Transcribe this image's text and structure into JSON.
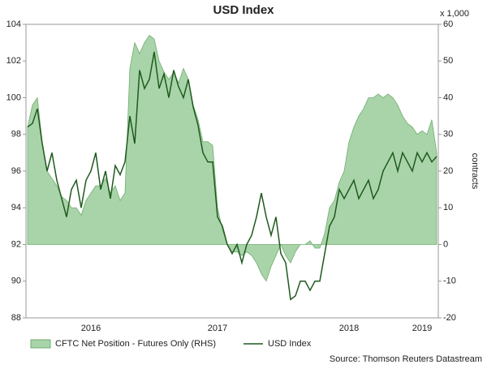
{
  "chart_data": {
    "type": "line",
    "title": "USD Index",
    "y2label": "contracts",
    "y2unit": "x 1,000",
    "source": "Source: Thomson Reuters Datastream",
    "categories": [
      null,
      null,
      null,
      null,
      null,
      null,
      null,
      null,
      null,
      null,
      null,
      null,
      null,
      "2016",
      null,
      null,
      null,
      null,
      null,
      null,
      null,
      null,
      null,
      null,
      null,
      null,
      null,
      null,
      null,
      null,
      null,
      null,
      null,
      null,
      null,
      null,
      null,
      null,
      null,
      "2017",
      null,
      null,
      null,
      null,
      null,
      null,
      null,
      null,
      null,
      null,
      null,
      null,
      null,
      null,
      null,
      null,
      null,
      null,
      null,
      null,
      null,
      null,
      null,
      null,
      null,
      null,
      "2018",
      null,
      null,
      null,
      null,
      null,
      null,
      null,
      null,
      null,
      null,
      null,
      null,
      null,
      null,
      "2019",
      null,
      null,
      null
    ],
    "series": [
      {
        "name": "CFTC Net Position - Futures Only (RHS)",
        "type": "area",
        "axis": "y2",
        "color": "#a9d4a9",
        "values": [
          32,
          38,
          40,
          28,
          20,
          18,
          16,
          13,
          12,
          10,
          10,
          8,
          12,
          14,
          16,
          16,
          18,
          14,
          16,
          12,
          14,
          48,
          55,
          52,
          55,
          57,
          56,
          50,
          47,
          45,
          47,
          44,
          48,
          45,
          38,
          34,
          28,
          28,
          27,
          10,
          4,
          0,
          -2,
          -2,
          -3,
          -2,
          -3,
          -5,
          -8,
          -10,
          -6,
          -3,
          0,
          -3,
          -5,
          -2,
          0,
          0,
          1,
          -1,
          -1,
          3,
          10,
          12,
          17,
          20,
          28,
          32,
          35,
          37,
          40,
          40,
          41,
          40,
          41,
          40,
          38,
          35,
          33,
          32,
          30,
          31,
          30,
          34,
          25
        ]
      },
      {
        "name": "USD Index",
        "type": "line",
        "axis": "y",
        "color": "#1f5a1f",
        "values": [
          98.4,
          98.6,
          99.4,
          97.5,
          96.0,
          97.0,
          95.5,
          94.5,
          93.5,
          95.0,
          95.5,
          94.0,
          95.5,
          96.0,
          97.0,
          95.0,
          96.0,
          94.5,
          96.3,
          95.8,
          96.5,
          99.0,
          97.5,
          101.5,
          100.5,
          101.0,
          102.5,
          100.5,
          101.3,
          100.0,
          101.5,
          100.6,
          100.0,
          101.0,
          99.5,
          98.5,
          97.0,
          96.5,
          96.5,
          93.5,
          93.0,
          92.0,
          91.5,
          92.0,
          91.0,
          92.0,
          92.5,
          93.5,
          94.8,
          93.5,
          92.5,
          93.5,
          91.5,
          91.0,
          89.0,
          89.2,
          90.0,
          90.0,
          89.5,
          90.0,
          90.0,
          91.5,
          93.0,
          93.5,
          95.0,
          94.5,
          95.0,
          95.5,
          94.5,
          95.0,
          95.5,
          94.5,
          95.0,
          96.0,
          96.5,
          97.0,
          96.0,
          97.0,
          96.5,
          96.0,
          97.0,
          96.5,
          97.0,
          96.5,
          96.8
        ]
      }
    ],
    "ylim": [
      88,
      104
    ],
    "yticks": [
      88,
      90,
      92,
      94,
      96,
      98,
      100,
      102,
      104
    ],
    "y2lim": [
      -20,
      60
    ],
    "y2ticks": [
      -20,
      -10,
      0,
      10,
      20,
      30,
      40,
      50,
      60
    ],
    "legend": "bottom"
  }
}
